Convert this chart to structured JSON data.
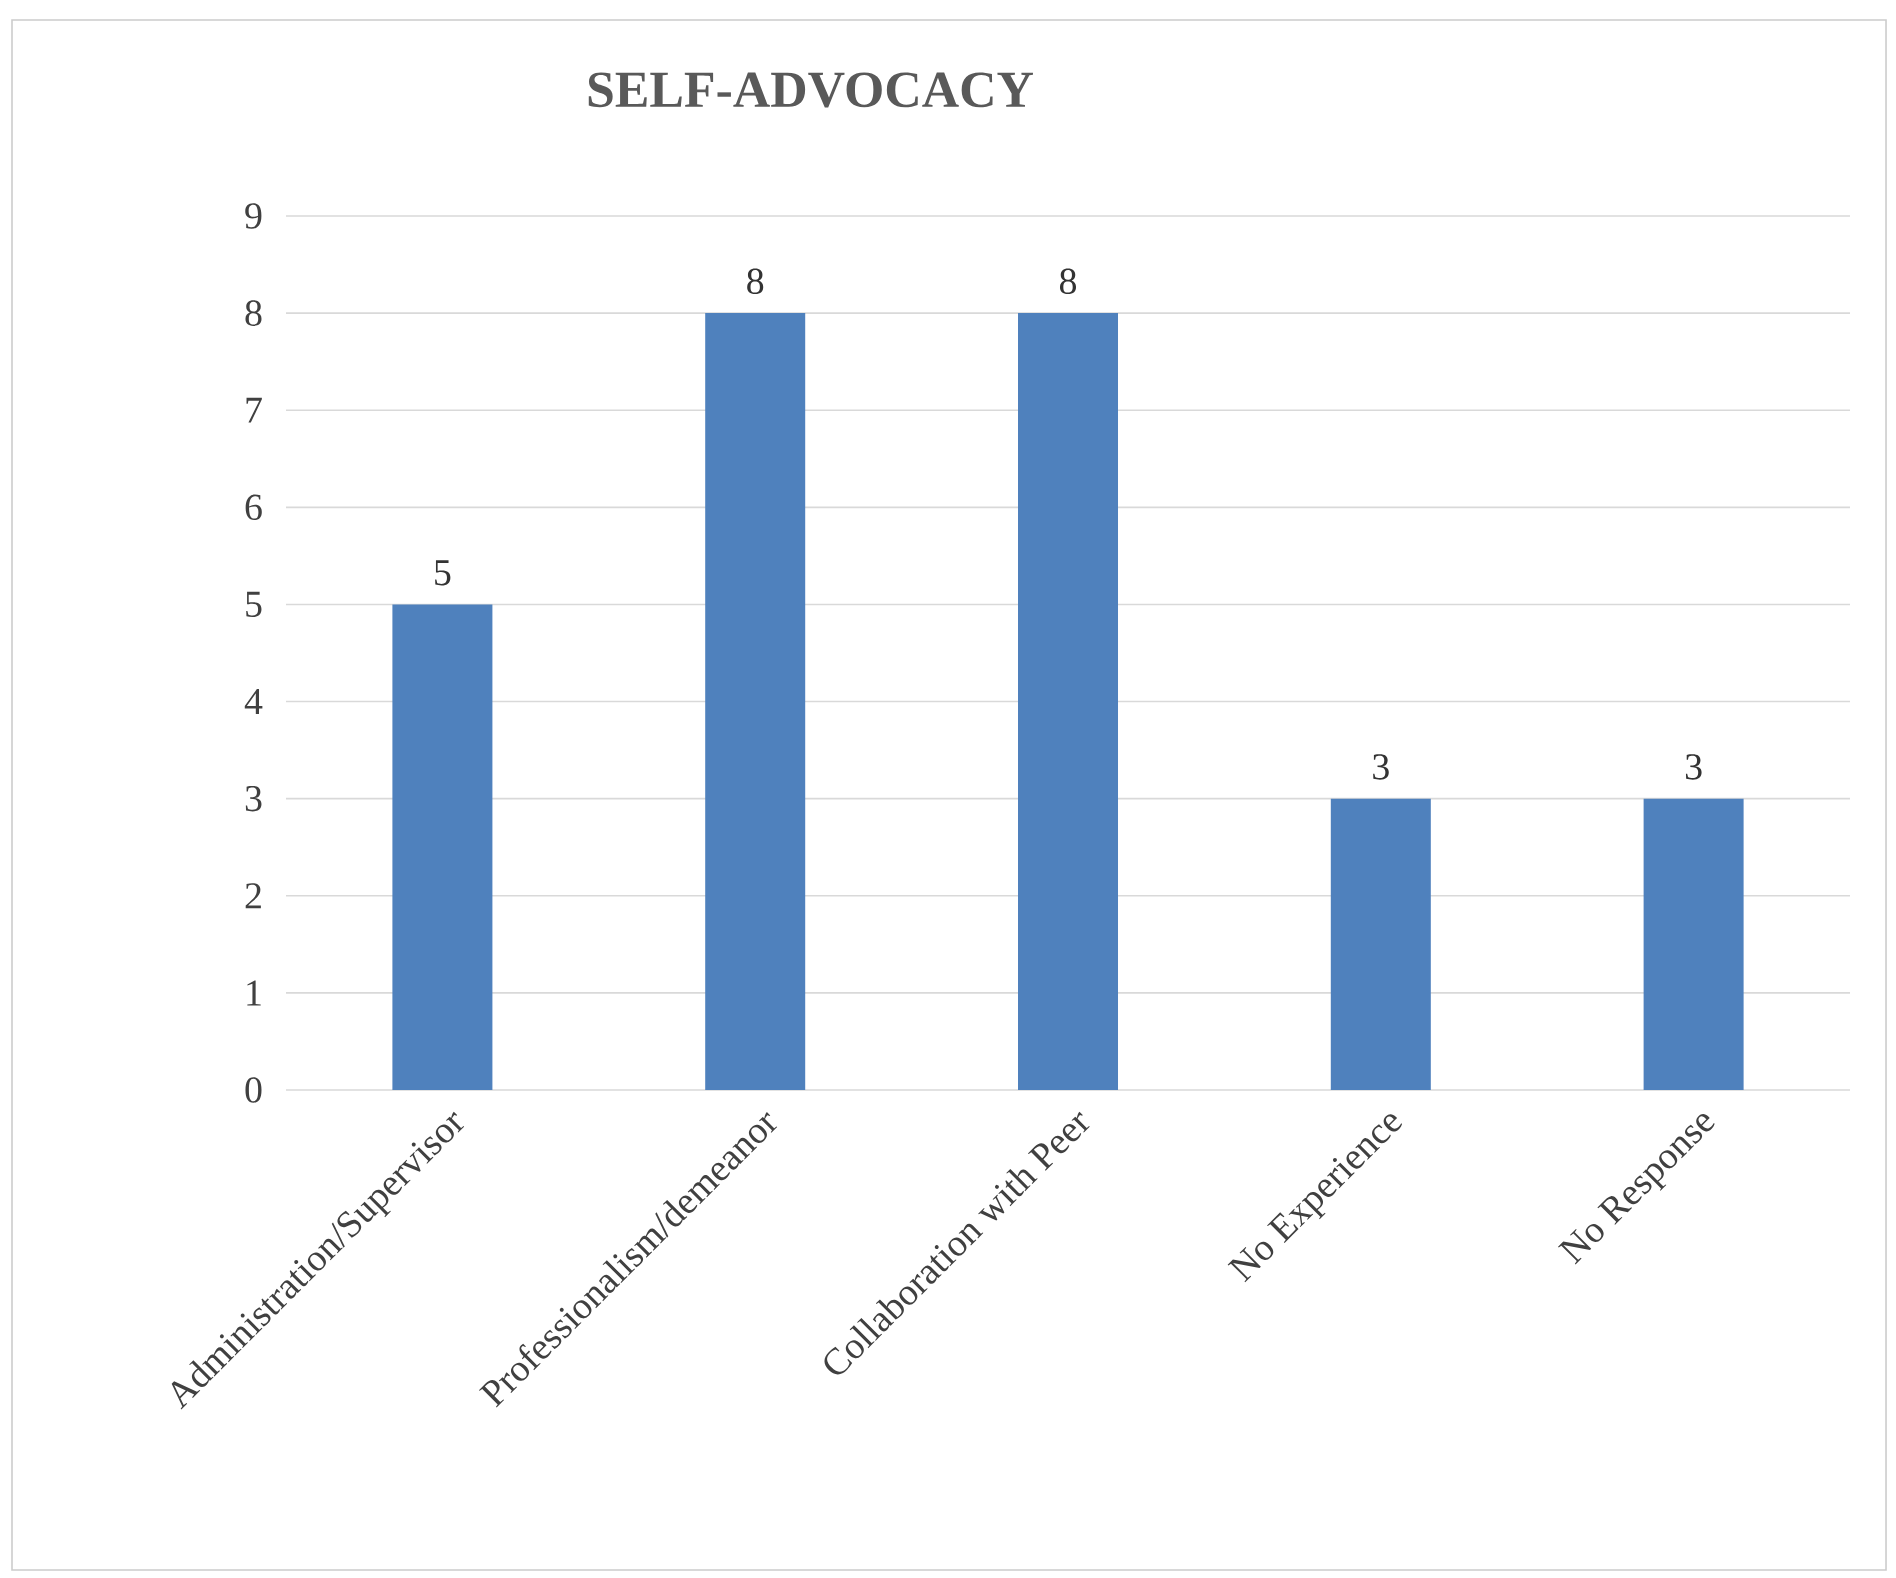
{
  "chart_data": {
    "type": "bar",
    "title": "SELF-ADVOCACY",
    "categories": [
      "Administration/Supervisor",
      "Professionalism/demeanor",
      "Collaboration with Peer",
      "No Experience",
      "No Response"
    ],
    "values": [
      5,
      8,
      8,
      3,
      3
    ],
    "color": "#4f81bd",
    "ylim": [
      0,
      9
    ],
    "yticks": [
      0,
      1,
      2,
      3,
      4,
      5,
      6,
      7,
      8,
      9
    ],
    "grid": "y",
    "data_labels": true
  }
}
